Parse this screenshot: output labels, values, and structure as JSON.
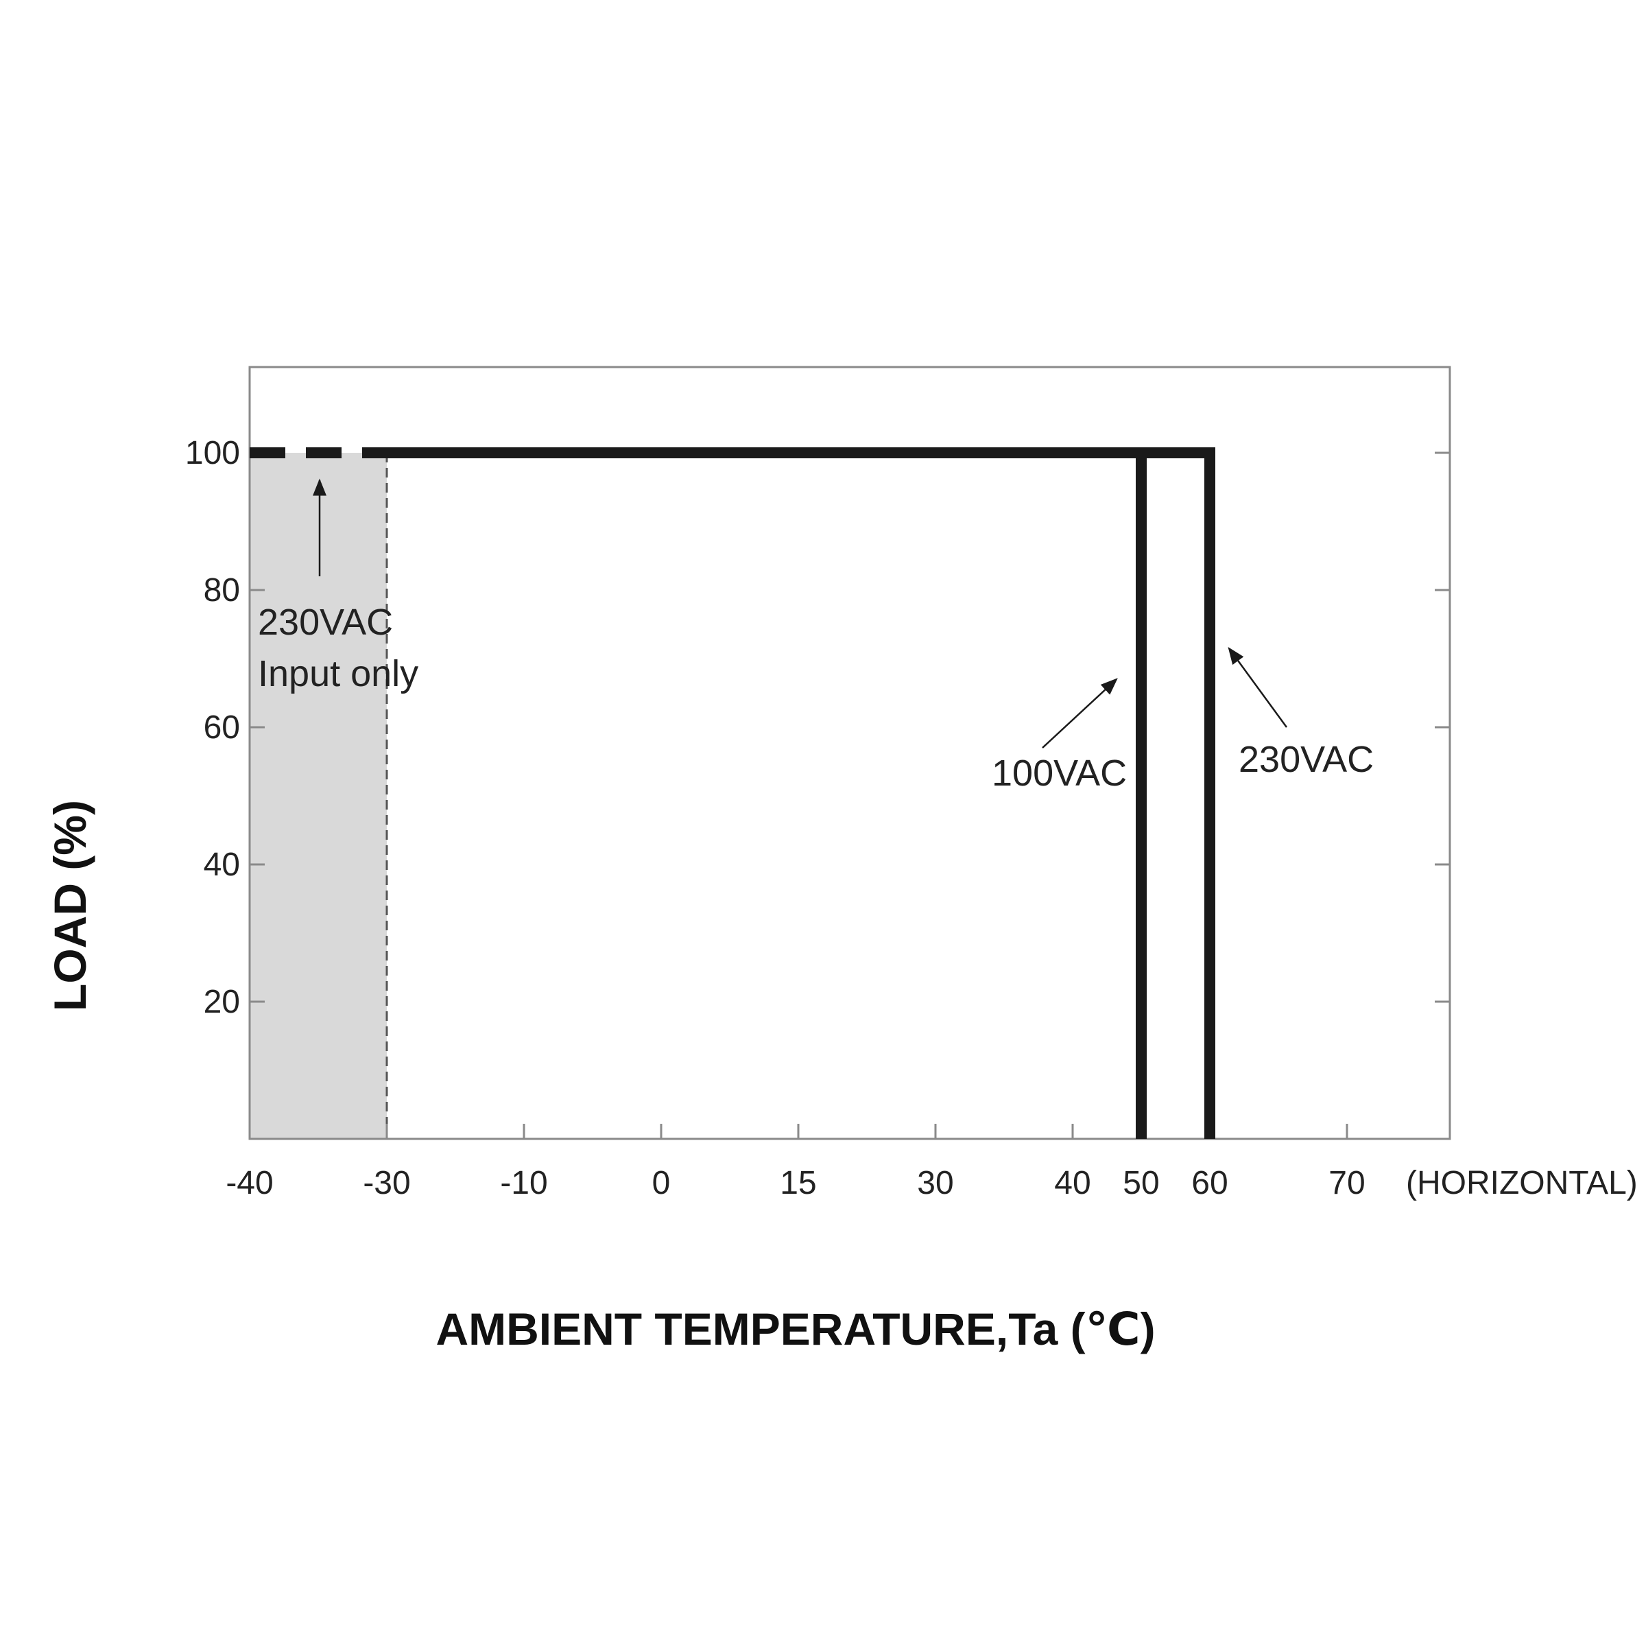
{
  "chart_data": {
    "type": "line",
    "title": "",
    "xlabel": "AMBIENT TEMPERATURE,Ta (℃)",
    "ylabel": "LOAD (%)",
    "x_ticks": [
      {
        "value": -40,
        "label": "-40"
      },
      {
        "value": -30,
        "label": "-30"
      },
      {
        "value": -20,
        "label": "-10"
      },
      {
        "value": -10,
        "label": "0"
      },
      {
        "value": 0,
        "label": "15"
      },
      {
        "value": 10,
        "label": "30"
      },
      {
        "value": 20,
        "label": "40"
      },
      {
        "value": 25,
        "label": "50"
      },
      {
        "value": 30,
        "label": "60"
      },
      {
        "value": 40,
        "label": "70"
      }
    ],
    "x_extra_label": "(HORIZONTAL)",
    "y_ticks": [
      20,
      40,
      60,
      80,
      100
    ],
    "xlim": [
      -40,
      47.5
    ],
    "ylim": [
      0,
      112.5
    ],
    "grid": false,
    "shaded_region": {
      "x": [
        -40,
        -30
      ],
      "color": "#d9d9d9"
    },
    "series": [
      {
        "name": "100VAC",
        "color": "#1a1a1a",
        "points": [
          {
            "x": -30,
            "y": 100
          },
          {
            "x": 25,
            "y": 100
          },
          {
            "x": 25,
            "y": 0
          }
        ]
      },
      {
        "name": "230VAC",
        "color": "#1a1a1a",
        "points": [
          {
            "x": -40,
            "y": 100
          },
          {
            "x": 30,
            "y": 100
          },
          {
            "x": 30,
            "y": 0
          }
        ]
      }
    ],
    "annotations": {
      "input_only_line1": "230VAC",
      "input_only_line2": "Input only",
      "label_100vac": "100VAC",
      "label_230vac": "230VAC"
    }
  }
}
